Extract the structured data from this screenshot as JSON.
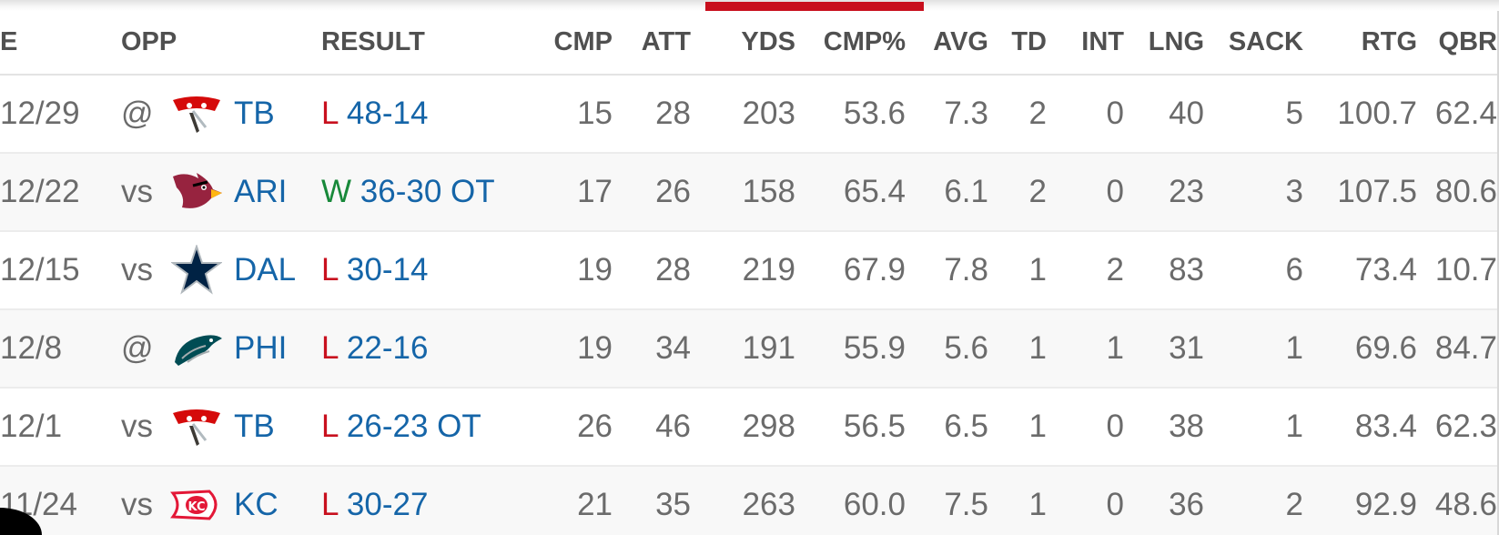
{
  "colors": {
    "accent": "#c8101e",
    "link": "#1565a8",
    "win": "#18893a",
    "loss": "#c8101e",
    "text": "#6b6b6b",
    "header_text": "#505050"
  },
  "headers": {
    "date": "E",
    "opp": "OPP",
    "result": "RESULT",
    "cmp": "CMP",
    "att": "ATT",
    "yds": "YDS",
    "cmp_pct": "CMP%",
    "avg": "AVG",
    "td": "TD",
    "int": "INT",
    "lng": "LNG",
    "sack": "SACK",
    "rtg": "RTG",
    "qbr": "QBR"
  },
  "rows": [
    {
      "date": "12/29",
      "loc": "@",
      "logo_icon": "buccaneers-logo-icon",
      "team": "TB",
      "wl": "L",
      "score": "48-14",
      "cmp": "15",
      "att": "28",
      "yds": "203",
      "cmp_pct": "53.6",
      "avg": "7.3",
      "td": "2",
      "int": "0",
      "lng": "40",
      "sack": "5",
      "rtg": "100.7",
      "qbr": "62.4"
    },
    {
      "date": "12/22",
      "loc": "vs",
      "logo_icon": "cardinals-logo-icon",
      "team": "ARI",
      "wl": "W",
      "score": "36-30 OT",
      "cmp": "17",
      "att": "26",
      "yds": "158",
      "cmp_pct": "65.4",
      "avg": "6.1",
      "td": "2",
      "int": "0",
      "lng": "23",
      "sack": "3",
      "rtg": "107.5",
      "qbr": "80.6"
    },
    {
      "date": "12/15",
      "loc": "vs",
      "logo_icon": "cowboys-logo-icon",
      "team": "DAL",
      "wl": "L",
      "score": "30-14",
      "cmp": "19",
      "att": "28",
      "yds": "219",
      "cmp_pct": "67.9",
      "avg": "7.8",
      "td": "1",
      "int": "2",
      "lng": "83",
      "sack": "6",
      "rtg": "73.4",
      "qbr": "10.7"
    },
    {
      "date": "12/8",
      "loc": "@",
      "logo_icon": "eagles-logo-icon",
      "team": "PHI",
      "wl": "L",
      "score": "22-16",
      "cmp": "19",
      "att": "34",
      "yds": "191",
      "cmp_pct": "55.9",
      "avg": "5.6",
      "td": "1",
      "int": "1",
      "lng": "31",
      "sack": "1",
      "rtg": "69.6",
      "qbr": "84.7"
    },
    {
      "date": "12/1",
      "loc": "vs",
      "logo_icon": "buccaneers-logo-icon",
      "team": "TB",
      "wl": "L",
      "score": "26-23 OT",
      "cmp": "26",
      "att": "46",
      "yds": "298",
      "cmp_pct": "56.5",
      "avg": "6.5",
      "td": "1",
      "int": "0",
      "lng": "38",
      "sack": "1",
      "rtg": "83.4",
      "qbr": "62.3"
    },
    {
      "date": "11/24",
      "loc": "vs",
      "logo_icon": "chiefs-logo-icon",
      "team": "KC",
      "wl": "L",
      "score": "30-27",
      "cmp": "21",
      "att": "35",
      "yds": "263",
      "cmp_pct": "60.0",
      "avg": "7.5",
      "td": "1",
      "int": "0",
      "lng": "36",
      "sack": "2",
      "rtg": "92.9",
      "qbr": "48.6"
    }
  ]
}
